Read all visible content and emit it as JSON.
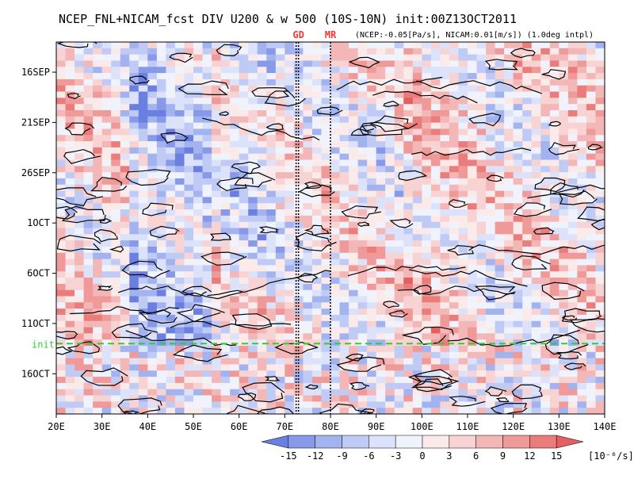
{
  "chart_data": {
    "type": "heatmap",
    "title": "NCEP_FNL+NICAM_fcst DIV U200 & w 500 (10S-10N) init:00Z13OCT2011",
    "subtitle": "(NCEP:-0.05[Pa/s], NICAM:0.01[m/s]) (1.0deg intpl)",
    "markers": [
      {
        "label": "GD",
        "lon": 73.0
      },
      {
        "label": "MR",
        "lon": 80.0
      }
    ],
    "x_label_values": [
      "20E",
      "30E",
      "40E",
      "50E",
      "60E",
      "70E",
      "80E",
      "90E",
      "100E",
      "110E",
      "120E",
      "130E",
      "140E"
    ],
    "x_ticks": [
      20,
      30,
      40,
      50,
      60,
      70,
      80,
      90,
      100,
      110,
      120,
      130,
      140
    ],
    "xlim": [
      20,
      140
    ],
    "y_label_values": [
      "16SEP",
      "21SEP",
      "26SEP",
      "1OCT",
      "6OCT",
      "11OCT",
      "16OCT"
    ],
    "y_ticks": [
      3,
      8,
      13,
      18,
      23,
      28,
      33
    ],
    "ylim": [
      0,
      37
    ],
    "init_label": "init",
    "init_day": 30,
    "colorbar": {
      "levels": [
        "-15",
        "-12",
        "-9",
        "-6",
        "-3",
        "0",
        "3",
        "6",
        "9",
        "12",
        "15"
      ],
      "colors": [
        "#6a7fe0",
        "#8799e8",
        "#a3b3ef",
        "#c0cbf5",
        "#dbe2fa",
        "#f1f3fc",
        "#fbeaea",
        "#f8d3d3",
        "#f4b7b7",
        "#ef9999",
        "#ea7c7c",
        "#e45f5f"
      ],
      "units": "[10⁻⁶/s]"
    },
    "colors": {
      "init_line": "#33cc33",
      "marker_text": "#ff3333",
      "contour": "#000000"
    }
  }
}
